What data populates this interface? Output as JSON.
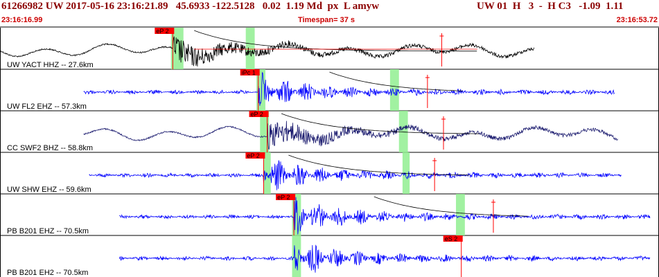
{
  "header": {
    "event_line": "61266982 UW 2017-05-16 23:16:21.89   45.6933 -122.5128   0.02  1.19 Md  px  L amyw",
    "magnitude_line": "UW 01  H   3  -  H C3   -1.09  1.11",
    "start_time": "23:16:16.99",
    "timespan_label": "Timespan=  37 s",
    "end_time": "23:16:53.72"
  },
  "colors": {
    "header_text": "#8b0000",
    "time_text": "#cc0000",
    "trace_black": "#000000",
    "trace_blue": "#0000ff",
    "trace_navy": "#1a1a6e",
    "pick_box": "#ff0000",
    "window_green": "#90ee90",
    "decay_curve": "#000000",
    "marker_red": "#ff0000"
  },
  "chart_data": {
    "type": "line",
    "x_unit": "seconds after 23:16:16.99",
    "xlim": [
      0,
      37
    ],
    "traces": [
      {
        "station_label": "UW YACT HHZ -- 27.6km",
        "trace_color": "black",
        "x_start": 0.0,
        "x_end": 30.0,
        "onset": 9.7,
        "pick_label": "eP 2",
        "pick_time": 9.7,
        "windows": [
          [
            9.6,
            10.3
          ],
          [
            13.8,
            14.3
          ]
        ],
        "decay_curve_start": 10.9,
        "marker_time": 24.8
      },
      {
        "station_label": "UW FL2 EHZ -- 57.3km",
        "trace_color": "blue",
        "x_start": 4.7,
        "x_end": 34.5,
        "onset": 14.5,
        "pick_label": "iPc 1",
        "pick_time": 14.5,
        "windows": [
          [
            14.4,
            14.9
          ],
          [
            21.9,
            22.4
          ]
        ],
        "decay_curve_start": 18.5,
        "marker_time": 24.0
      },
      {
        "station_label": "CC SWF2 BHZ -- 58.8km",
        "trace_color": "navy",
        "x_start": 4.7,
        "x_end": 34.7,
        "onset": 15.0,
        "pick_label": "eP 2",
        "pick_time": 15.0,
        "windows": [
          [
            14.6,
            15.1
          ],
          [
            22.4,
            22.9
          ]
        ],
        "decay_curve_start": 15.8,
        "marker_time": 24.9
      },
      {
        "station_label": "UW SHW EHZ -- 59.6km",
        "trace_color": "blue",
        "x_start": 5.0,
        "x_end": 34.9,
        "onset": 14.8,
        "pick_label": "eP 2",
        "pick_time": 14.8,
        "windows": [
          [
            14.8,
            15.2
          ],
          [
            22.6,
            23.0
          ]
        ],
        "decay_curve_start": 16.2,
        "marker_time": 24.4
      },
      {
        "station_label": "PB B201 EHZ -- 70.5km",
        "trace_color": "blue",
        "x_start": 6.7,
        "x_end": 36.5,
        "onset": 16.5,
        "pick_label": "eP 2",
        "pick_time": 16.5,
        "windows": [
          [
            16.4,
            16.9
          ],
          [
            25.6,
            26.1
          ]
        ],
        "decay_curve_start": 21.0,
        "marker_time": 27.7
      },
      {
        "station_label": "PB B201 EH2 -- 70.5km",
        "trace_color": "blue",
        "x_start": 6.7,
        "x_end": 36.5,
        "onset": 16.5,
        "pick_label": "eS 2",
        "pick_time": 25.9,
        "windows": [
          [
            16.4,
            16.9
          ]
        ],
        "decay_curve_start": null,
        "marker_time": null
      }
    ]
  }
}
